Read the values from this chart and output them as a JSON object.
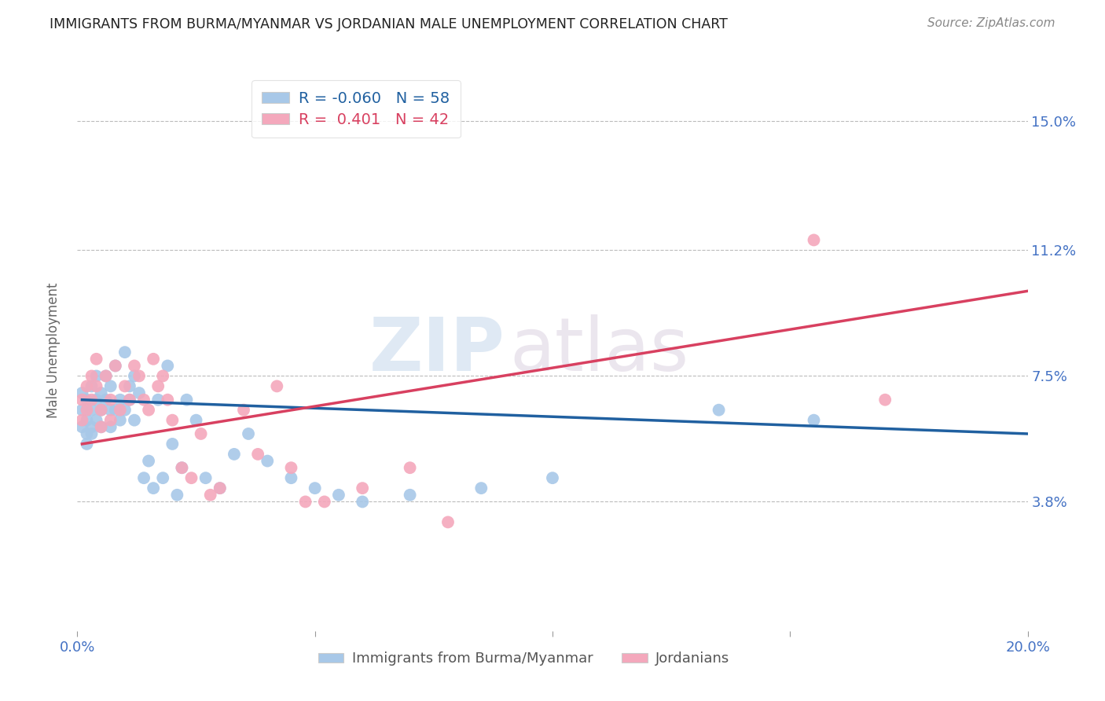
{
  "title": "IMMIGRANTS FROM BURMA/MYANMAR VS JORDANIAN MALE UNEMPLOYMENT CORRELATION CHART",
  "source": "Source: ZipAtlas.com",
  "ylabel": "Male Unemployment",
  "xlim": [
    0.0,
    0.2
  ],
  "ylim": [
    0.0,
    0.165
  ],
  "yticks": [
    0.038,
    0.075,
    0.112,
    0.15
  ],
  "ytick_labels": [
    "3.8%",
    "7.5%",
    "11.2%",
    "15.0%"
  ],
  "xticks": [
    0.0,
    0.05,
    0.1,
    0.15,
    0.2
  ],
  "xtick_labels": [
    "0.0%",
    "",
    "",
    "",
    "20.0%"
  ],
  "blue_R": -0.06,
  "blue_N": 58,
  "pink_R": 0.401,
  "pink_N": 42,
  "blue_color": "#a8c8e8",
  "pink_color": "#f4a8bc",
  "blue_line_color": "#2060a0",
  "pink_line_color": "#d84060",
  "legend_label_blue": "Immigrants from Burma/Myanmar",
  "legend_label_pink": "Jordanians",
  "watermark_zip": "ZIP",
  "watermark_atlas": "atlas",
  "background_color": "#ffffff",
  "blue_points_x": [
    0.001,
    0.001,
    0.001,
    0.002,
    0.002,
    0.002,
    0.002,
    0.003,
    0.003,
    0.003,
    0.003,
    0.004,
    0.004,
    0.004,
    0.005,
    0.005,
    0.005,
    0.006,
    0.006,
    0.007,
    0.007,
    0.007,
    0.008,
    0.008,
    0.009,
    0.009,
    0.01,
    0.01,
    0.011,
    0.011,
    0.012,
    0.012,
    0.013,
    0.014,
    0.015,
    0.016,
    0.017,
    0.018,
    0.019,
    0.02,
    0.021,
    0.022,
    0.023,
    0.025,
    0.027,
    0.03,
    0.033,
    0.036,
    0.04,
    0.045,
    0.05,
    0.055,
    0.06,
    0.07,
    0.085,
    0.1,
    0.135,
    0.155
  ],
  "blue_points_y": [
    0.065,
    0.06,
    0.07,
    0.058,
    0.068,
    0.062,
    0.055,
    0.072,
    0.065,
    0.06,
    0.058,
    0.068,
    0.075,
    0.062,
    0.07,
    0.065,
    0.06,
    0.075,
    0.068,
    0.065,
    0.06,
    0.072,
    0.078,
    0.065,
    0.068,
    0.062,
    0.082,
    0.065,
    0.072,
    0.068,
    0.075,
    0.062,
    0.07,
    0.045,
    0.05,
    0.042,
    0.068,
    0.045,
    0.078,
    0.055,
    0.04,
    0.048,
    0.068,
    0.062,
    0.045,
    0.042,
    0.052,
    0.058,
    0.05,
    0.045,
    0.042,
    0.04,
    0.038,
    0.04,
    0.042,
    0.045,
    0.065,
    0.062
  ],
  "pink_points_x": [
    0.001,
    0.001,
    0.002,
    0.002,
    0.003,
    0.003,
    0.004,
    0.004,
    0.005,
    0.005,
    0.006,
    0.007,
    0.007,
    0.008,
    0.009,
    0.01,
    0.011,
    0.012,
    0.013,
    0.014,
    0.015,
    0.016,
    0.017,
    0.018,
    0.019,
    0.02,
    0.022,
    0.024,
    0.026,
    0.028,
    0.03,
    0.035,
    0.038,
    0.042,
    0.045,
    0.048,
    0.052,
    0.06,
    0.07,
    0.078,
    0.155,
    0.17
  ],
  "pink_points_y": [
    0.062,
    0.068,
    0.072,
    0.065,
    0.075,
    0.068,
    0.08,
    0.072,
    0.065,
    0.06,
    0.075,
    0.068,
    0.062,
    0.078,
    0.065,
    0.072,
    0.068,
    0.078,
    0.075,
    0.068,
    0.065,
    0.08,
    0.072,
    0.075,
    0.068,
    0.062,
    0.048,
    0.045,
    0.058,
    0.04,
    0.042,
    0.065,
    0.052,
    0.072,
    0.048,
    0.038,
    0.038,
    0.042,
    0.048,
    0.032,
    0.115,
    0.068
  ],
  "blue_trend_x": [
    0.001,
    0.2
  ],
  "blue_trend_y": [
    0.068,
    0.058
  ],
  "pink_trend_x": [
    0.001,
    0.2
  ],
  "pink_trend_y": [
    0.055,
    0.1
  ]
}
